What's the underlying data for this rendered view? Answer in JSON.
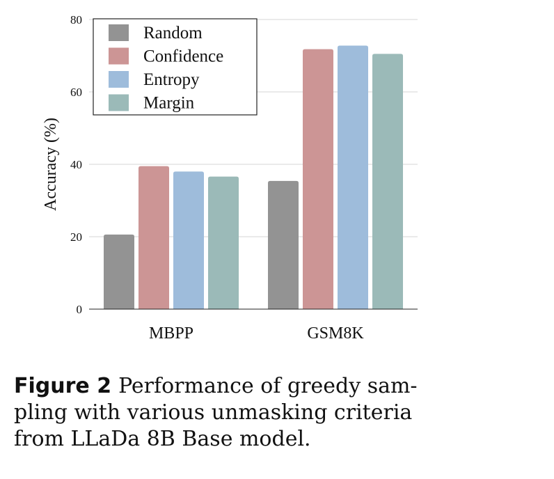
{
  "chart_data": {
    "type": "bar",
    "categories": [
      "MBPP",
      "GSM8K"
    ],
    "series": [
      {
        "name": "Random",
        "color": "#939393",
        "values": [
          20.6,
          35.4
        ]
      },
      {
        "name": "Confidence",
        "color": "#cc9595",
        "values": [
          39.5,
          71.8
        ]
      },
      {
        "name": "Entropy",
        "color": "#9ebcdb",
        "values": [
          38.0,
          72.8
        ]
      },
      {
        "name": "Margin",
        "color": "#9bbab8",
        "values": [
          36.6,
          70.5
        ]
      }
    ],
    "ylabel": "Accuracy (%)",
    "ylim": [
      0,
      80
    ],
    "yticks": [
      0,
      20,
      40,
      60,
      80
    ],
    "grid": true,
    "legend_position": "top-left"
  },
  "caption": {
    "label": "Figure 2",
    "lines": [
      "Performance of greedy sam-",
      "pling with various unmasking criteria",
      "from LLaDa 8B Base model."
    ]
  }
}
